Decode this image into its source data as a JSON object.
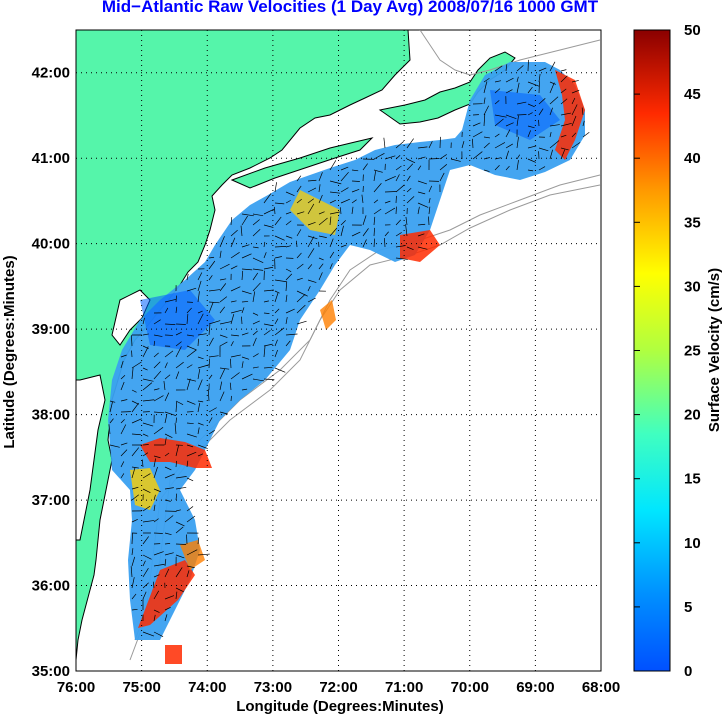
{
  "title": "Mid−Atlantic Raw Velocities (1 Day Avg) 2008/07/16 1000 GMT",
  "map": {
    "xlabel": "Longitude (Degrees:Minutes)",
    "ylabel": "Latitude (Degrees:Minutes)",
    "lon_range": [
      -76,
      -68
    ],
    "lat_range": [
      35,
      42.5
    ],
    "x_ticks": [
      {
        "value": -76,
        "label": "76:00"
      },
      {
        "value": -75,
        "label": "75:00"
      },
      {
        "value": -74,
        "label": "74:00"
      },
      {
        "value": -73,
        "label": "73:00"
      },
      {
        "value": -72,
        "label": "72:00"
      },
      {
        "value": -71,
        "label": "71:00"
      },
      {
        "value": -70,
        "label": "70:00"
      },
      {
        "value": -69,
        "label": "69:00"
      },
      {
        "value": -68,
        "label": "68:00"
      }
    ],
    "y_ticks": [
      {
        "value": 35,
        "label": "35:00"
      },
      {
        "value": 36,
        "label": "36:00"
      },
      {
        "value": 37,
        "label": "37:00"
      },
      {
        "value": 38,
        "label": "38:00"
      },
      {
        "value": 39,
        "label": "39:00"
      },
      {
        "value": 40,
        "label": "40:00"
      },
      {
        "value": 41,
        "label": "41:00"
      },
      {
        "value": 42,
        "label": "42:00"
      }
    ],
    "grid": "dotted",
    "colors": {
      "land": "#55f5aa",
      "coast": "#000000",
      "bathymetry": "#9a9a9a",
      "vectors": "#000000"
    }
  },
  "colorbar": {
    "label": "Surface Velocity (cm/s)",
    "range": [
      0,
      50
    ],
    "ticks": [
      {
        "value": 0,
        "label": "0"
      },
      {
        "value": 5,
        "label": "5"
      },
      {
        "value": 10,
        "label": "10"
      },
      {
        "value": 15,
        "label": "15"
      },
      {
        "value": 20,
        "label": "20"
      },
      {
        "value": 25,
        "label": "25"
      },
      {
        "value": 30,
        "label": "30"
      },
      {
        "value": 35,
        "label": "35"
      },
      {
        "value": 40,
        "label": "40"
      },
      {
        "value": 45,
        "label": "45"
      },
      {
        "value": 50,
        "label": "50"
      }
    ],
    "colormap": "jet"
  }
}
